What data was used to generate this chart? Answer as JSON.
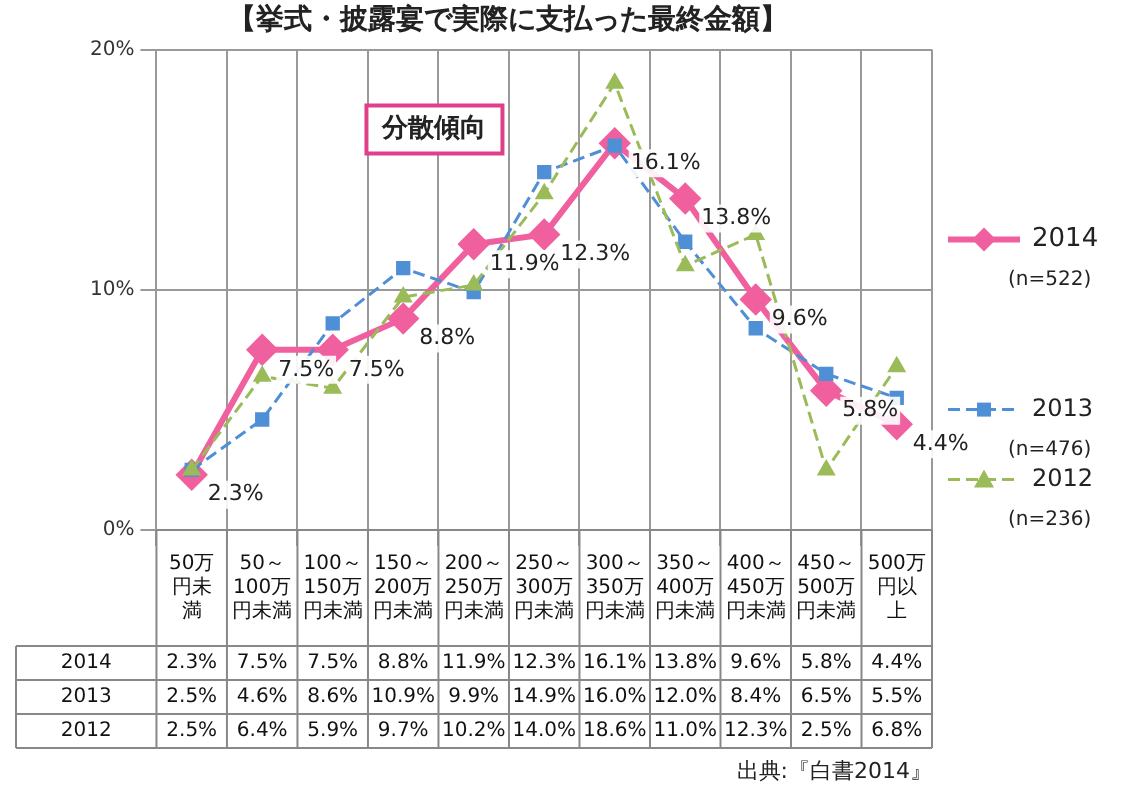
{
  "chart_data": {
    "type": "line",
    "title": "【挙式・披露宴で実際に支払った最終金額】",
    "categories": [
      "50万円未満",
      "50～100万円未満",
      "100～150万円未満",
      "150～200万円未満",
      "200～250万円未満",
      "250～300万円未満",
      "300～350万円未満",
      "350～400万円未満",
      "400～450万円未満",
      "450～500万円未満",
      "500万円以上"
    ],
    "series": [
      {
        "name": "2014",
        "color": "#f0609e",
        "marker": "diamond",
        "line_style": "solid",
        "values": [
          2.3,
          7.5,
          7.5,
          8.8,
          11.9,
          12.3,
          16.1,
          13.8,
          9.6,
          5.8,
          4.4
        ],
        "value_labels": [
          "2.3%",
          "7.5%",
          "7.5%",
          "8.8%",
          "11.9%",
          "12.3%",
          "16.1%",
          "13.8%",
          "9.6%",
          "5.8%",
          "4.4%"
        ]
      },
      {
        "name": "2013",
        "color": "#4f8fd6",
        "marker": "square",
        "line_style": "dashed",
        "values": [
          2.5,
          4.6,
          8.6,
          10.9,
          9.9,
          14.9,
          16.0,
          12.0,
          8.4,
          6.5,
          5.5
        ],
        "value_labels": [
          "2.5%",
          "4.6%",
          "8.6%",
          "10.9%",
          "9.9%",
          "14.9%",
          "16.0%",
          "12.0%",
          "8.4%",
          "6.5%",
          "5.5%"
        ]
      },
      {
        "name": "2012",
        "color": "#9bbb59",
        "marker": "triangle",
        "line_style": "dashed",
        "values": [
          2.5,
          6.4,
          5.9,
          9.7,
          10.2,
          14.0,
          18.6,
          11.0,
          12.3,
          2.5,
          6.8
        ],
        "value_labels": [
          "2.5%",
          "6.4%",
          "5.9%",
          "9.7%",
          "10.2%",
          "14.0%",
          "18.6%",
          "11.0%",
          "12.3%",
          "2.5%",
          "6.8%"
        ]
      }
    ],
    "ylim": [
      0,
      20
    ],
    "yticks": [
      {
        "value": 0,
        "label": "0%"
      },
      {
        "value": 10,
        "label": "10%"
      },
      {
        "value": 20,
        "label": "20%"
      }
    ],
    "grid": true,
    "legend": "right",
    "data_labels": true,
    "annotations": [
      "分散傾向",
      "(n=522)",
      "(n=476)",
      "(n=236)",
      "出典:『白書2014』"
    ]
  }
}
